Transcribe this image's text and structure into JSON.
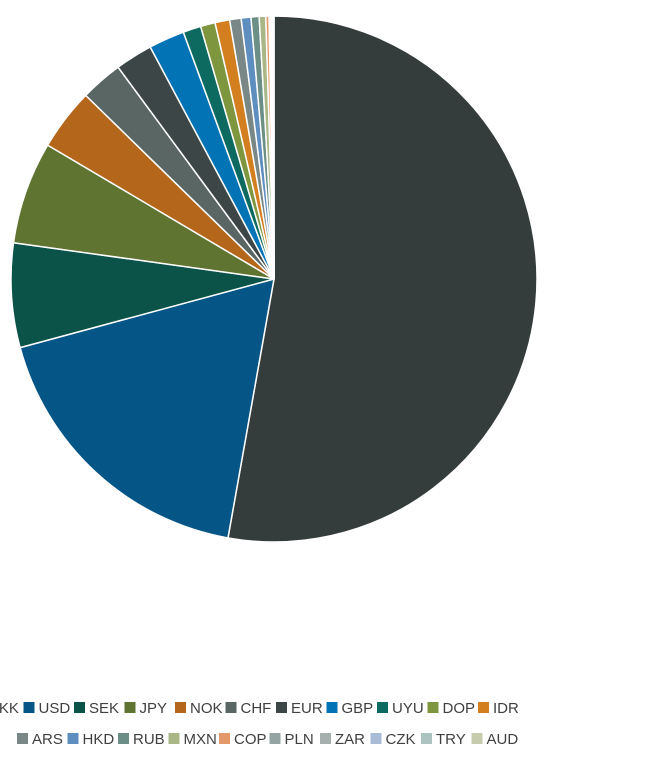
{
  "chart_data": {
    "type": "pie",
    "title": "",
    "legend_position": "bottom",
    "slices": [
      {
        "label": "DKK",
        "value": 52.8,
        "color": "#353c3c"
      },
      {
        "label": "USD",
        "value": 18.0,
        "color": "#055587"
      },
      {
        "label": "SEK",
        "value": 6.4,
        "color": "#0b5249"
      },
      {
        "label": "JPY",
        "value": 6.3,
        "color": "#607431"
      },
      {
        "label": "NOK",
        "value": 3.8,
        "color": "#b4661a"
      },
      {
        "label": "CHF",
        "value": 2.6,
        "color": "#5a6664"
      },
      {
        "label": "EUR",
        "value": 2.3,
        "color": "#3c4646"
      },
      {
        "label": "GBP",
        "value": 2.2,
        "color": "#0273b4"
      },
      {
        "label": "UYU",
        "value": 1.1,
        "color": "#0d6a60"
      },
      {
        "label": "DOP",
        "value": 0.9,
        "color": "#7e963e"
      },
      {
        "label": "IDR",
        "value": 0.9,
        "color": "#d37f1f"
      },
      {
        "label": "ARS",
        "value": 0.7,
        "color": "#798887"
      },
      {
        "label": "HKD",
        "value": 0.6,
        "color": "#5e8ec0"
      },
      {
        "label": "RUB",
        "value": 0.5,
        "color": "#6b8f86"
      },
      {
        "label": "MXN",
        "value": 0.4,
        "color": "#a9b686"
      },
      {
        "label": "COP",
        "value": 0.2,
        "color": "#e3996a"
      },
      {
        "label": "PLN",
        "value": 0.1,
        "color": "#94a4a3"
      },
      {
        "label": "ZAR",
        "value": 0.1,
        "color": "#a6aeae"
      },
      {
        "label": "CZK",
        "value": 0.05,
        "color": "#a8bcd7"
      },
      {
        "label": "TRY",
        "value": 0.03,
        "color": "#acc3c1"
      },
      {
        "label": "AUD",
        "value": 0.02,
        "color": "#c7cbae"
      }
    ],
    "legend_rows": [
      [
        "DKK",
        "USD",
        "SEK",
        "JPY",
        "NOK",
        "CHF",
        "EUR",
        "GBP",
        "UYU",
        "DOP",
        "IDR"
      ],
      [
        "ARS",
        "HKD",
        "RUB",
        "MXN",
        "COP",
        "PLN",
        "ZAR",
        "CZK",
        "TRY",
        "AUD"
      ]
    ]
  }
}
